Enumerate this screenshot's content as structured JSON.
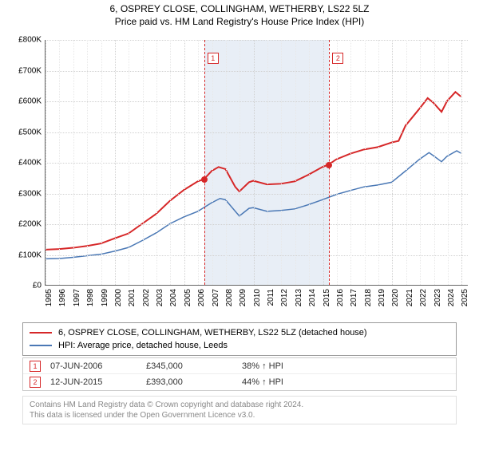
{
  "title": "6, OSPREY CLOSE, COLLINGHAM, WETHERBY, LS22 5LZ",
  "subtitle": "Price paid vs. HM Land Registry's House Price Index (HPI)",
  "chart": {
    "type": "line",
    "background_color": "#ffffff",
    "grid_color_major": "#d0d0d0",
    "grid_color_minor": "#e8e8e8",
    "grid_dash": "1,3",
    "axis_color": "#666666",
    "label_fontsize": 10,
    "x": {
      "min": 1995,
      "max": 2025.5,
      "ticks": [
        1995,
        1996,
        1997,
        1998,
        1999,
        2000,
        2001,
        2002,
        2003,
        2004,
        2005,
        2006,
        2007,
        2008,
        2009,
        2010,
        2011,
        2012,
        2013,
        2014,
        2015,
        2016,
        2017,
        2018,
        2019,
        2020,
        2021,
        2022,
        2023,
        2024,
        2025
      ]
    },
    "y": {
      "min": 0,
      "max": 800000,
      "tick_step": 100000,
      "prefix": "£",
      "suffix": "K",
      "scale_label_div": 1000
    },
    "shade_band": {
      "x_from": 2006.44,
      "x_to": 2015.45,
      "fill": "#e8eef6"
    },
    "markers": [
      {
        "n": "1",
        "x": 2006.44,
        "color": "#d62728",
        "box_top": 16
      },
      {
        "n": "2",
        "x": 2015.45,
        "color": "#d62728",
        "box_top": 16
      }
    ],
    "series": [
      {
        "name": "6, OSPREY CLOSE, COLLINGHAM, WETHERBY, LS22 5LZ (detached house)",
        "color": "#d62728",
        "width": 2,
        "data": [
          [
            1995,
            115000
          ],
          [
            1996,
            117000
          ],
          [
            1997,
            121000
          ],
          [
            1998,
            127000
          ],
          [
            1999,
            135000
          ],
          [
            2000,
            152000
          ],
          [
            2001,
            168000
          ],
          [
            2002,
            200000
          ],
          [
            2003,
            232000
          ],
          [
            2004,
            275000
          ],
          [
            2005,
            310000
          ],
          [
            2006,
            338000
          ],
          [
            2006.44,
            345000
          ],
          [
            2007,
            372000
          ],
          [
            2007.5,
            385000
          ],
          [
            2008,
            378000
          ],
          [
            2008.7,
            320000
          ],
          [
            2009,
            305000
          ],
          [
            2009.7,
            335000
          ],
          [
            2010,
            340000
          ],
          [
            2011,
            328000
          ],
          [
            2012,
            330000
          ],
          [
            2013,
            338000
          ],
          [
            2014,
            360000
          ],
          [
            2015,
            385000
          ],
          [
            2015.45,
            393000
          ],
          [
            2016,
            410000
          ],
          [
            2017,
            428000
          ],
          [
            2018,
            442000
          ],
          [
            2019,
            450000
          ],
          [
            2020,
            465000
          ],
          [
            2020.5,
            470000
          ],
          [
            2021,
            520000
          ],
          [
            2022,
            575000
          ],
          [
            2022.6,
            610000
          ],
          [
            2023,
            595000
          ],
          [
            2023.6,
            565000
          ],
          [
            2024,
            600000
          ],
          [
            2024.6,
            630000
          ],
          [
            2025,
            615000
          ]
        ]
      },
      {
        "name": "HPI: Average price, detached house, Leeds",
        "color": "#4a78b5",
        "width": 1.5,
        "data": [
          [
            1995,
            85000
          ],
          [
            1996,
            86000
          ],
          [
            1997,
            90000
          ],
          [
            1998,
            95000
          ],
          [
            1999,
            100000
          ],
          [
            2000,
            110000
          ],
          [
            2001,
            122000
          ],
          [
            2002,
            145000
          ],
          [
            2003,
            170000
          ],
          [
            2004,
            200000
          ],
          [
            2005,
            222000
          ],
          [
            2006,
            240000
          ],
          [
            2007,
            268000
          ],
          [
            2007.6,
            282000
          ],
          [
            2008,
            278000
          ],
          [
            2008.8,
            235000
          ],
          [
            2009,
            225000
          ],
          [
            2009.7,
            250000
          ],
          [
            2010,
            252000
          ],
          [
            2011,
            240000
          ],
          [
            2012,
            243000
          ],
          [
            2013,
            248000
          ],
          [
            2014,
            262000
          ],
          [
            2015,
            278000
          ],
          [
            2016,
            295000
          ],
          [
            2017,
            308000
          ],
          [
            2018,
            320000
          ],
          [
            2019,
            326000
          ],
          [
            2020,
            335000
          ],
          [
            2021,
            372000
          ],
          [
            2022,
            410000
          ],
          [
            2022.7,
            432000
          ],
          [
            2023,
            422000
          ],
          [
            2023.6,
            402000
          ],
          [
            2024,
            420000
          ],
          [
            2024.7,
            438000
          ],
          [
            2025,
            430000
          ]
        ]
      }
    ],
    "points": [
      {
        "x": 2006.44,
        "y": 345000,
        "color": "#d62728"
      },
      {
        "x": 2015.45,
        "y": 393000,
        "color": "#d62728"
      }
    ]
  },
  "legend": {
    "items": [
      {
        "color": "#d62728",
        "label": "6, OSPREY CLOSE, COLLINGHAM, WETHERBY, LS22 5LZ (detached house)"
      },
      {
        "color": "#4a78b5",
        "label": "HPI: Average price, detached house, Leeds"
      }
    ]
  },
  "sales": {
    "cols_width": [
      120,
      120,
      100,
      120
    ],
    "rows": [
      {
        "n": "1",
        "color": "#d62728",
        "date": "07-JUN-2006",
        "price": "£345,000",
        "delta": "38% ↑ HPI"
      },
      {
        "n": "2",
        "color": "#d62728",
        "date": "12-JUN-2015",
        "price": "£393,000",
        "delta": "44% ↑ HPI"
      }
    ]
  },
  "attribution": {
    "line1": "Contains HM Land Registry data © Crown copyright and database right 2024.",
    "line2": "This data is licensed under the Open Government Licence v3.0."
  }
}
